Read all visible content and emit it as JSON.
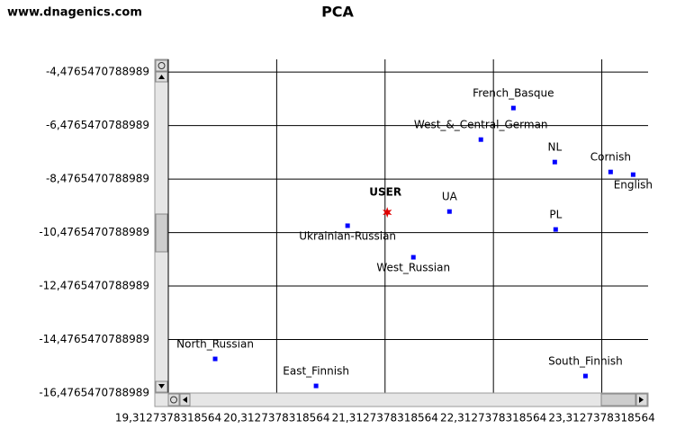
{
  "header": {
    "site": "www.dnagenics.com"
  },
  "chart_data": {
    "type": "scatter",
    "title": "PCA",
    "xlim": [
      19.3127378318564,
      23.74
    ],
    "ylim": [
      -16.4765470788989,
      -4.0
    ],
    "xticks": [
      {
        "value": 19.3127378318564,
        "label": "19,3127378318564"
      },
      {
        "value": 20.3127378318564,
        "label": "20,3127378318564"
      },
      {
        "value": 21.3127378318564,
        "label": "21,3127378318564"
      },
      {
        "value": 22.3127378318564,
        "label": "22,3127378318564"
      },
      {
        "value": 23.3127378318564,
        "label": "23,3127378318564"
      }
    ],
    "yticks": [
      {
        "value": -4.4765470788989,
        "label": "-4,4765470788989"
      },
      {
        "value": -6.4765470788989,
        "label": "-6,4765470788989"
      },
      {
        "value": -8.4765470788989,
        "label": "-8,4765470788989"
      },
      {
        "value": -10.4765470788989,
        "label": "-10,4765470788989"
      },
      {
        "value": -12.4765470788989,
        "label": "-12,4765470788989"
      },
      {
        "value": -14.4765470788989,
        "label": "-14,4765470788989"
      },
      {
        "value": -16.4765470788989,
        "label": "-16,4765470788989"
      }
    ],
    "grid": true,
    "color": "#0000ff",
    "points": [
      {
        "label": "French_Basque",
        "x": 22.497,
        "y": -5.82
      },
      {
        "label": "West_&_Central_German",
        "x": 22.197,
        "y": -7.0
      },
      {
        "label": "NL",
        "x": 22.879,
        "y": -7.84
      },
      {
        "label": "Cornish",
        "x": 23.394,
        "y": -8.21
      },
      {
        "label": "English",
        "x": 23.602,
        "y": -8.31
      },
      {
        "label": "UA",
        "x": 21.907,
        "y": -9.69
      },
      {
        "label": "Ukrainian-Russian",
        "x": 20.967,
        "y": -10.22
      },
      {
        "label": "PL",
        "x": 22.887,
        "y": -10.36
      },
      {
        "label": "West_Russian",
        "x": 21.574,
        "y": -11.4
      },
      {
        "label": "North_Russian",
        "x": 19.745,
        "y": -15.2
      },
      {
        "label": "East_Finnish",
        "x": 20.676,
        "y": -16.21
      },
      {
        "label": "South_Finnish",
        "x": 23.162,
        "y": -15.84
      }
    ],
    "highlight": {
      "label": "USER",
      "x": 21.333,
      "y": -9.72,
      "color": "#e00000"
    }
  }
}
